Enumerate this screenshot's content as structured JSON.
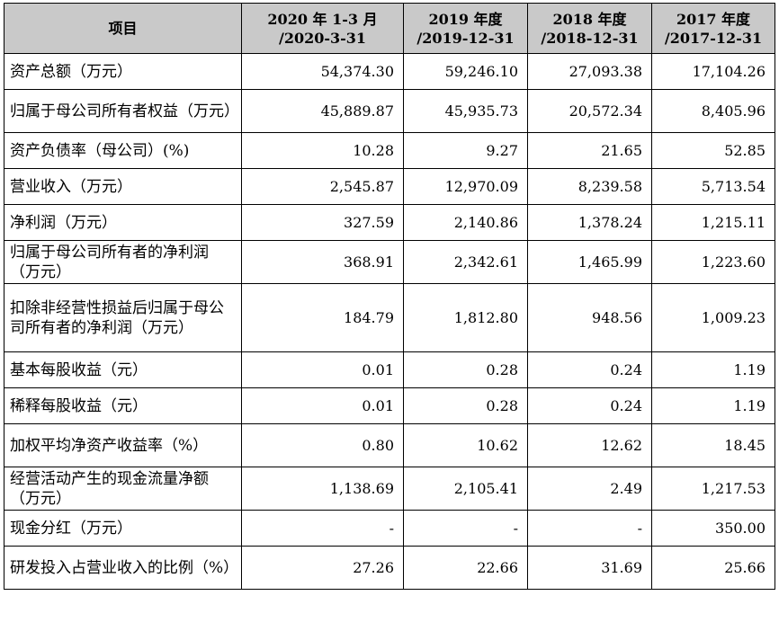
{
  "table": {
    "header": {
      "item": "项目",
      "periods": [
        {
          "line1": "2020 年 1-3 月",
          "line2": "/2020-3-31"
        },
        {
          "line1": "2019 年度",
          "line2": "/2019-12-31"
        },
        {
          "line1": "2018 年度",
          "line2": "/2018-12-31"
        },
        {
          "line1": "2017 年度",
          "line2": "/2017-12-31"
        }
      ]
    },
    "rows": [
      {
        "label": "资产总额（万元）",
        "values": [
          "54,374.30",
          "59,246.10",
          "27,093.38",
          "17,104.26"
        ]
      },
      {
        "label": "归属于母公司所有者权益（万元）",
        "values": [
          "45,889.87",
          "45,935.73",
          "20,572.34",
          "8,405.96"
        ]
      },
      {
        "label": "资产负债率（母公司）(%)",
        "values": [
          "10.28",
          "9.27",
          "21.65",
          "52.85"
        ]
      },
      {
        "label": "营业收入（万元）",
        "values": [
          "2,545.87",
          "12,970.09",
          "8,239.58",
          "5,713.54"
        ]
      },
      {
        "label": "净利润（万元）",
        "values": [
          "327.59",
          "2,140.86",
          "1,378.24",
          "1,215.11"
        ]
      },
      {
        "label": "归属于母公司所有者的净利润（万元）",
        "values": [
          "368.91",
          "2,342.61",
          "1,465.99",
          "1,223.60"
        ]
      },
      {
        "label": "扣除非经营性损益后归属于母公司所有者的净利润（万元）",
        "values": [
          "184.79",
          "1,812.80",
          "948.56",
          "1,009.23"
        ]
      },
      {
        "label": "基本每股收益（元）",
        "values": [
          "0.01",
          "0.28",
          "0.24",
          "1.19"
        ]
      },
      {
        "label": "稀释每股收益（元）",
        "values": [
          "0.01",
          "0.28",
          "0.24",
          "1.19"
        ]
      },
      {
        "label": "加权平均净资产收益率（%）",
        "values": [
          "0.80",
          "10.62",
          "12.62",
          "18.45"
        ]
      },
      {
        "label": "经营活动产生的现金流量净额（万元）",
        "values": [
          "1,138.69",
          "2,105.41",
          "2.49",
          "1,217.53"
        ]
      },
      {
        "label": "现金分红（万元）",
        "values": [
          "-",
          "-",
          "-",
          "350.00"
        ]
      },
      {
        "label": "研发投入占营业收入的比例（%）",
        "values": [
          "27.26",
          "22.66",
          "31.69",
          "25.66"
        ]
      }
    ]
  }
}
